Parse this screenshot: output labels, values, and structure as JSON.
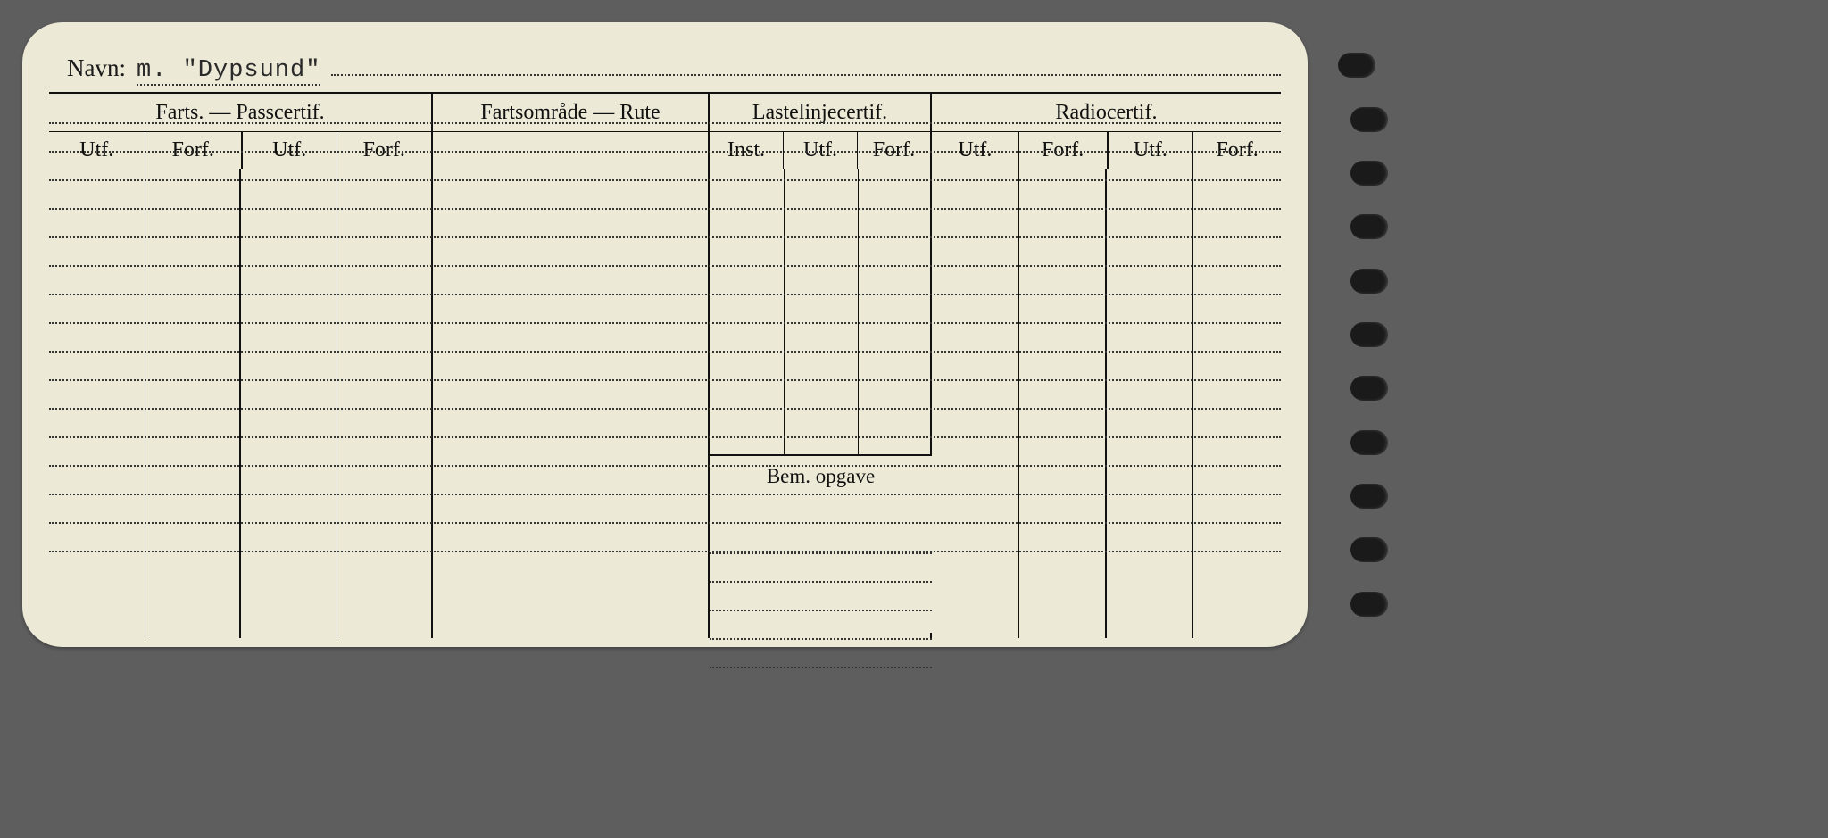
{
  "page": {
    "background": "#5e5e5e",
    "card_bg": "#ece9d6",
    "ink": "#111111",
    "dotted": "#333333"
  },
  "navn": {
    "label": "Navn:",
    "value": "m. \"Dypsund\""
  },
  "sections": {
    "farts": {
      "label": "Farts. — Passcertif.",
      "sub": [
        "Utf.",
        "Forf.",
        "Utf.",
        "Forf."
      ]
    },
    "omrade": {
      "label": "Fartsområde — Rute"
    },
    "laste": {
      "label": "Lastelinjecertif.",
      "sub": [
        "Inst.",
        "Utf.",
        "Forf."
      ]
    },
    "radio": {
      "label": "Radiocertif.",
      "sub": [
        "Utf.",
        "Forf.",
        "Utf.",
        "Forf."
      ]
    }
  },
  "bem": {
    "label": "Bem. opgave"
  },
  "layout": {
    "dotted_row_height": 32,
    "dotted_row_count": 16,
    "bem_top_row_index": 10,
    "bem_dotted_count": 5,
    "binder_holes": 11
  }
}
